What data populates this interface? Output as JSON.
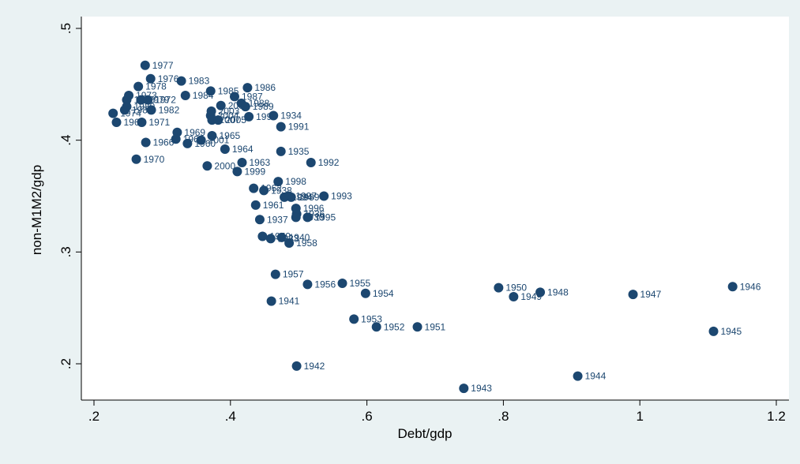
{
  "chart_data": {
    "type": "scatter",
    "title": "",
    "xlabel": "Debt/gdp",
    "ylabel": "non-M1M2/gdp",
    "xlim": [
      0.2,
      1.2
    ],
    "ylim": [
      0.2,
      0.5
    ],
    "x_ticks": [
      ".2",
      ".4",
      ".6",
      ".8",
      "1",
      "1.2"
    ],
    "y_ticks": [
      ".2",
      ".3",
      ".4",
      ".5"
    ],
    "grid": false,
    "legend": "none",
    "colors": {
      "background": "#eaf2f3",
      "plot_area": "#ffffff",
      "marker": "#1c4770",
      "label": "#1c4770"
    },
    "points": [
      {
        "x": 0.275,
        "y": 0.467,
        "label": "1977"
      },
      {
        "x": 0.283,
        "y": 0.455,
        "label": "1976"
      },
      {
        "x": 0.328,
        "y": 0.453,
        "label": "1983"
      },
      {
        "x": 0.265,
        "y": 0.448,
        "label": "1978"
      },
      {
        "x": 0.371,
        "y": 0.444,
        "label": "1985"
      },
      {
        "x": 0.425,
        "y": 0.447,
        "label": "1986"
      },
      {
        "x": 0.251,
        "y": 0.44,
        "label": "1973"
      },
      {
        "x": 0.334,
        "y": 0.44,
        "label": "1984"
      },
      {
        "x": 0.406,
        "y": 0.439,
        "label": "1987"
      },
      {
        "x": 0.248,
        "y": 0.436,
        "label": "1975"
      },
      {
        "x": 0.269,
        "y": 0.436,
        "label": "1979"
      },
      {
        "x": 0.279,
        "y": 0.436,
        "label": "1972"
      },
      {
        "x": 0.416,
        "y": 0.433,
        "label": "1988"
      },
      {
        "x": 0.386,
        "y": 0.431,
        "label": "2002"
      },
      {
        "x": 0.422,
        "y": 0.43,
        "label": "1989"
      },
      {
        "x": 0.248,
        "y": 0.43,
        "label": "1980"
      },
      {
        "x": 0.245,
        "y": 0.427,
        "label": "1981"
      },
      {
        "x": 0.284,
        "y": 0.427,
        "label": "1982"
      },
      {
        "x": 0.372,
        "y": 0.426,
        "label": "2003"
      },
      {
        "x": 0.228,
        "y": 0.424,
        "label": "1974"
      },
      {
        "x": 0.371,
        "y": 0.422,
        "label": "2004"
      },
      {
        "x": 0.463,
        "y": 0.422,
        "label": "1934"
      },
      {
        "x": 0.427,
        "y": 0.421,
        "label": "1990"
      },
      {
        "x": 0.373,
        "y": 0.418,
        "label": "2007"
      },
      {
        "x": 0.382,
        "y": 0.418,
        "label": "2005"
      },
      {
        "x": 0.233,
        "y": 0.416,
        "label": "1967"
      },
      {
        "x": 0.27,
        "y": 0.416,
        "label": "1971"
      },
      {
        "x": 0.474,
        "y": 0.412,
        "label": "1991"
      },
      {
        "x": 0.322,
        "y": 0.407,
        "label": "1969"
      },
      {
        "x": 0.373,
        "y": 0.404,
        "label": "1965"
      },
      {
        "x": 0.32,
        "y": 0.401,
        "label": "1968"
      },
      {
        "x": 0.357,
        "y": 0.4,
        "label": "2001"
      },
      {
        "x": 0.276,
        "y": 0.398,
        "label": "1966"
      },
      {
        "x": 0.337,
        "y": 0.397,
        "label": "1960"
      },
      {
        "x": 0.392,
        "y": 0.392,
        "label": "1964"
      },
      {
        "x": 0.474,
        "y": 0.39,
        "label": "1935"
      },
      {
        "x": 0.262,
        "y": 0.383,
        "label": "1970"
      },
      {
        "x": 0.417,
        "y": 0.38,
        "label": "1963"
      },
      {
        "x": 0.518,
        "y": 0.38,
        "label": "1992"
      },
      {
        "x": 0.366,
        "y": 0.377,
        "label": "2000"
      },
      {
        "x": 0.41,
        "y": 0.372,
        "label": "1999"
      },
      {
        "x": 0.47,
        "y": 0.363,
        "label": "1998"
      },
      {
        "x": 0.434,
        "y": 0.357,
        "label": "1962"
      },
      {
        "x": 0.449,
        "y": 0.355,
        "label": "1938"
      },
      {
        "x": 0.537,
        "y": 0.35,
        "label": "1993"
      },
      {
        "x": 0.485,
        "y": 0.35,
        "label": "1997"
      },
      {
        "x": 0.489,
        "y": 0.349,
        "label": "1939"
      },
      {
        "x": 0.479,
        "y": 0.349,
        "label": "1994"
      },
      {
        "x": 0.437,
        "y": 0.342,
        "label": "1961"
      },
      {
        "x": 0.496,
        "y": 0.339,
        "label": "1996"
      },
      {
        "x": 0.497,
        "y": 0.334,
        "label": "1936"
      },
      {
        "x": 0.496,
        "y": 0.331,
        "label": "1930"
      },
      {
        "x": 0.513,
        "y": 0.331,
        "label": "1995"
      },
      {
        "x": 0.443,
        "y": 0.329,
        "label": "1937"
      },
      {
        "x": 0.447,
        "y": 0.314,
        "label": "1959"
      },
      {
        "x": 0.475,
        "y": 0.313,
        "label": "1940"
      },
      {
        "x": 0.459,
        "y": 0.312,
        "label": "1933"
      },
      {
        "x": 0.486,
        "y": 0.308,
        "label": "1958"
      },
      {
        "x": 0.466,
        "y": 0.28,
        "label": "1957"
      },
      {
        "x": 0.513,
        "y": 0.271,
        "label": "1956"
      },
      {
        "x": 0.564,
        "y": 0.272,
        "label": "1955"
      },
      {
        "x": 0.793,
        "y": 0.268,
        "label": "1950"
      },
      {
        "x": 0.854,
        "y": 0.264,
        "label": "1948"
      },
      {
        "x": 0.598,
        "y": 0.263,
        "label": "1954"
      },
      {
        "x": 0.815,
        "y": 0.26,
        "label": "1949"
      },
      {
        "x": 0.99,
        "y": 0.262,
        "label": "1947"
      },
      {
        "x": 1.136,
        "y": 0.269,
        "label": "1946"
      },
      {
        "x": 0.46,
        "y": 0.256,
        "label": "1941"
      },
      {
        "x": 0.581,
        "y": 0.24,
        "label": "1953"
      },
      {
        "x": 0.614,
        "y": 0.233,
        "label": "1952"
      },
      {
        "x": 0.674,
        "y": 0.233,
        "label": "1951"
      },
      {
        "x": 1.108,
        "y": 0.229,
        "label": "1945"
      },
      {
        "x": 0.497,
        "y": 0.198,
        "label": "1942"
      },
      {
        "x": 0.909,
        "y": 0.189,
        "label": "1944"
      },
      {
        "x": 0.742,
        "y": 0.178,
        "label": "1943"
      }
    ]
  }
}
